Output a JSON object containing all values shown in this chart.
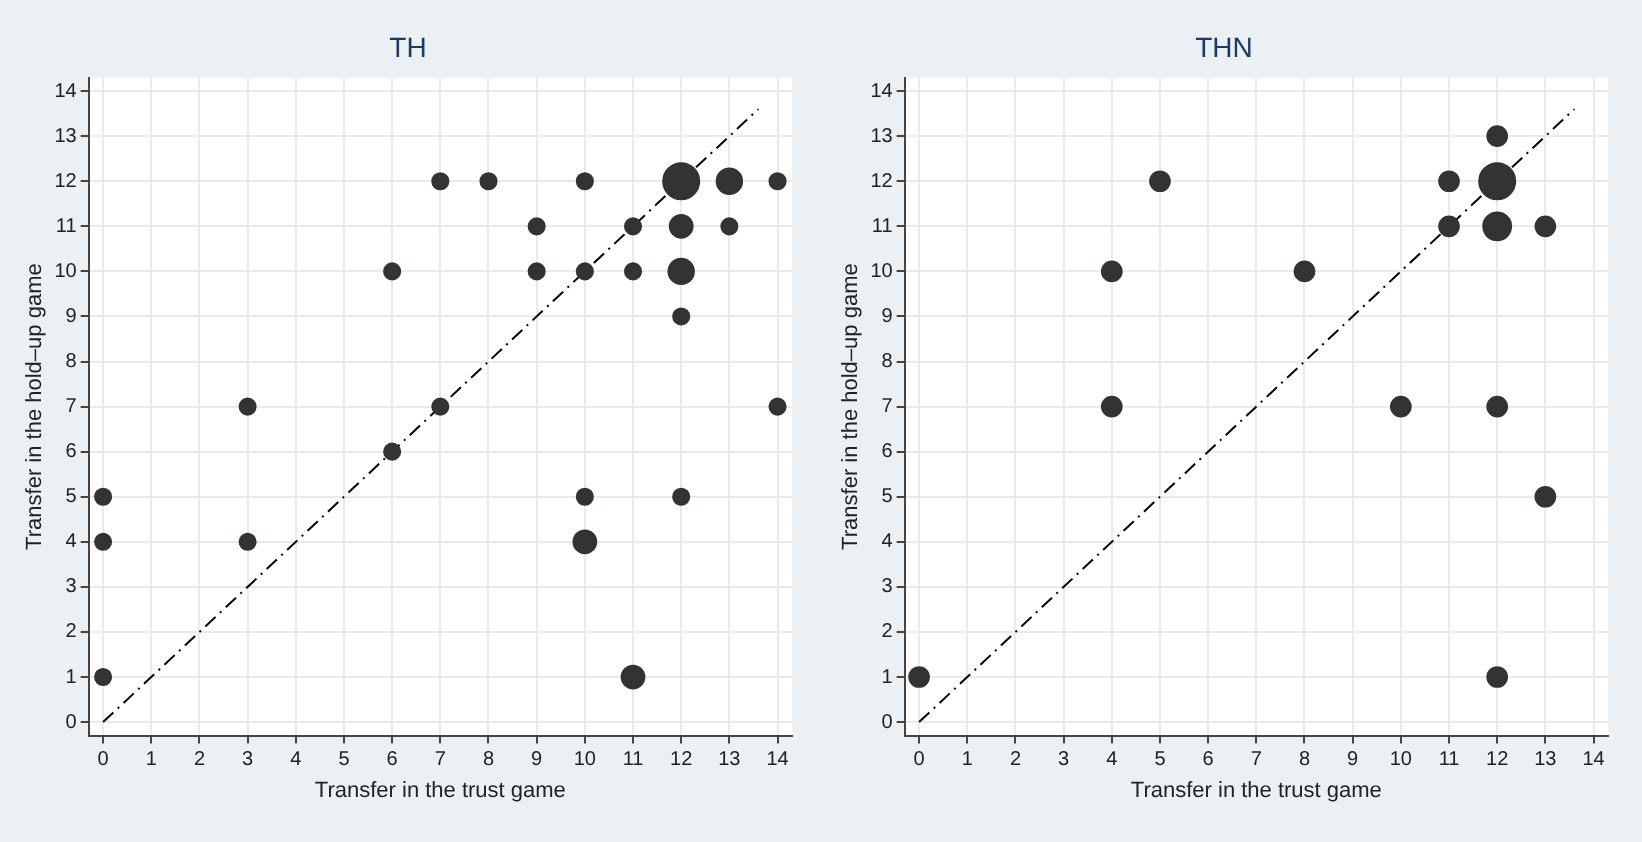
{
  "chart_data": [
    {
      "type": "bubble",
      "title": "TH",
      "xlabel": "Transfer in the trust game",
      "ylabel": "Transfer in the hold–up game",
      "xlim": [
        -0.3,
        14.3
      ],
      "ylim": [
        -0.3,
        14.3
      ],
      "xticks": [
        0,
        1,
        2,
        3,
        4,
        5,
        6,
        7,
        8,
        9,
        10,
        11,
        12,
        13,
        14
      ],
      "yticks": [
        0,
        1,
        2,
        3,
        4,
        5,
        6,
        7,
        8,
        9,
        10,
        11,
        12,
        13,
        14
      ],
      "grid": true,
      "marker": "circle",
      "series": [
        {
          "type": "bubble",
          "color": "#333333",
          "x": [
            0,
            0,
            0,
            3,
            3,
            6,
            6,
            7,
            7,
            8,
            9,
            9,
            10,
            10,
            10,
            10,
            11,
            11,
            11,
            12,
            12,
            12,
            12,
            12,
            13,
            13,
            14,
            14
          ],
          "values": [
            5,
            4,
            1,
            7,
            4,
            10,
            6,
            12,
            7,
            12,
            11,
            10,
            12,
            10,
            5,
            4,
            11,
            10,
            1,
            12,
            11,
            10,
            9,
            5,
            12,
            11,
            12,
            7
          ],
          "sizes": [
            0.2,
            0.2,
            0.2,
            0.2,
            0.2,
            0.2,
            0.2,
            0.2,
            0.2,
            0.2,
            0.2,
            0.2,
            0.2,
            0.2,
            0.2,
            0.4,
            0.2,
            0.2,
            0.4,
            1,
            0.4,
            0.5,
            0.2,
            0.2,
            0.5,
            0.2,
            0.2,
            0.2
          ]
        },
        {
          "type": "line",
          "color": "#000000",
          "line_style": "dashed",
          "marker": "none",
          "x": [
            0,
            13.6
          ],
          "values": [
            0,
            13.6
          ]
        }
      ]
    },
    {
      "type": "bubble",
      "title": "THN",
      "xlabel": "Transfer in the trust game",
      "ylabel": "Transfer in the hold–up game",
      "xlim": [
        -0.3,
        14.3
      ],
      "ylim": [
        -0.3,
        14.3
      ],
      "xticks": [
        0,
        1,
        2,
        3,
        4,
        5,
        6,
        7,
        8,
        9,
        10,
        11,
        12,
        13,
        14
      ],
      "yticks": [
        0,
        1,
        2,
        3,
        4,
        5,
        6,
        7,
        8,
        9,
        10,
        11,
        12,
        13,
        14
      ],
      "grid": true,
      "marker": "circle",
      "series": [
        {
          "type": "bubble",
          "color": "#333333",
          "x": [
            0,
            4,
            4,
            5,
            8,
            10,
            11,
            11,
            12,
            12,
            12,
            12,
            12,
            13,
            13
          ],
          "values": [
            1,
            10,
            7,
            12,
            10,
            7,
            12,
            11,
            13,
            12,
            11,
            7,
            1,
            11,
            5
          ],
          "sizes": [
            0.3,
            0.3,
            0.3,
            0.3,
            0.3,
            0.3,
            0.3,
            0.3,
            0.3,
            1,
            0.6,
            0.3,
            0.3,
            0.3,
            0.3
          ]
        },
        {
          "type": "line",
          "color": "#000000",
          "line_style": "dashed",
          "marker": "none",
          "x": [
            0,
            13.6
          ],
          "values": [
            0,
            13.6
          ]
        }
      ]
    }
  ]
}
